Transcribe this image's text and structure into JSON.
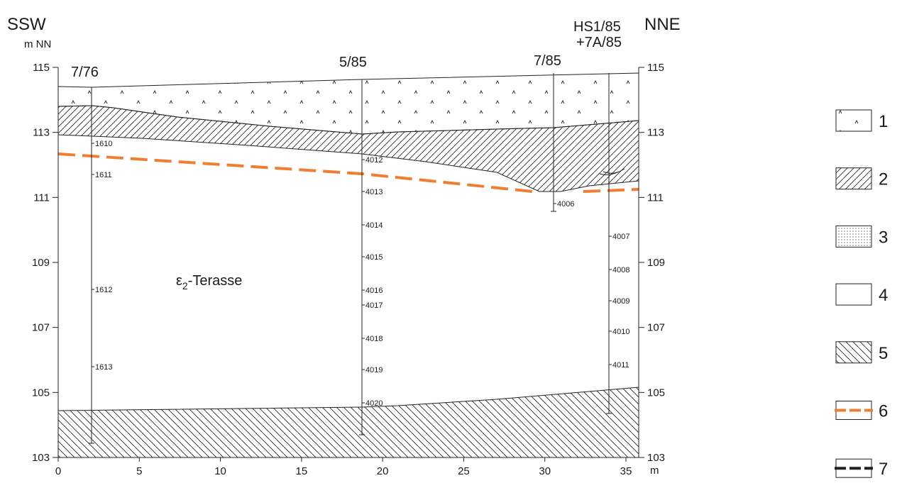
{
  "header": {
    "left": "SSW",
    "right": "NNE",
    "y_unit": "m NN",
    "x_unit": "m"
  },
  "axis": {
    "xticks": [
      0,
      5,
      10,
      15,
      20,
      25,
      30,
      35
    ],
    "yticks": [
      103,
      105,
      107,
      109,
      111,
      113,
      115
    ]
  },
  "boreholes": [
    {
      "name": [
        "7/76"
      ],
      "samples": [
        "1610",
        "1611",
        "1612",
        "1613"
      ]
    },
    {
      "name": [
        "5/85"
      ],
      "samples": [
        "4012",
        "4013",
        "4014",
        "4015",
        "4016",
        "4017",
        "4018",
        "4019",
        "4020"
      ]
    },
    {
      "name": [
        "7/85"
      ],
      "samples": [
        "4006"
      ]
    },
    {
      "name": [
        "HS1/85",
        "+7A/85"
      ],
      "samples": [
        "4007",
        "4008",
        "4009",
        "4010",
        "4011"
      ]
    }
  ],
  "unit_label": {
    "symbol": "ε",
    "subscript": "2",
    "text": "-Terasse"
  },
  "legend": [
    "1",
    "2",
    "3",
    "4",
    "5",
    "6",
    "7"
  ]
}
